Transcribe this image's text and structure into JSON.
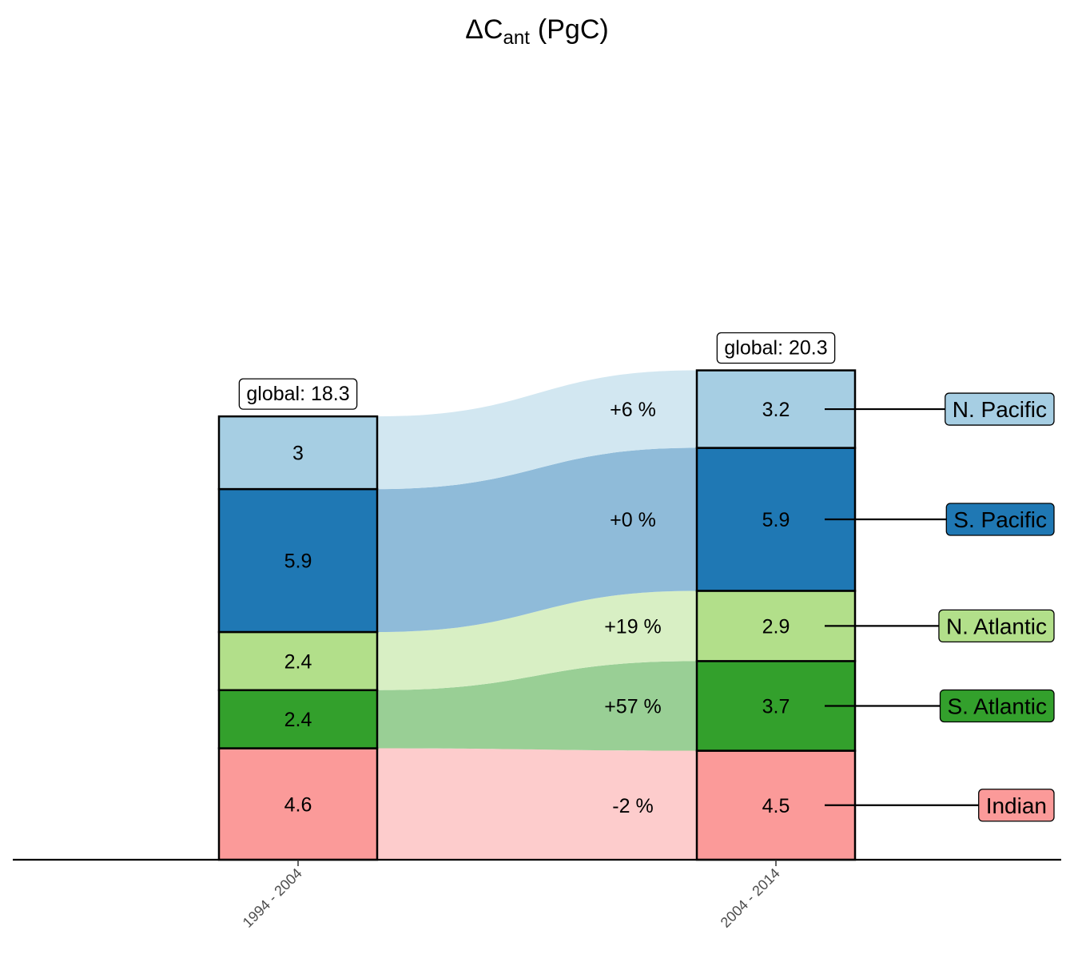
{
  "title": {
    "main": "ΔC",
    "subscript": "ant",
    "unit": "(PgC)"
  },
  "chart_data": {
    "type": "alluvial-stacked-bar",
    "periods": [
      "1994 - 2004",
      "2004 - 2014"
    ],
    "stack_order_bottom_to_top": [
      "Indian",
      "S. Atlantic",
      "N. Atlantic",
      "S. Pacific",
      "N. Pacific"
    ],
    "series": [
      {
        "name": "N. Pacific",
        "values": [
          3,
          3.2
        ],
        "labels": [
          "3",
          "3.2"
        ],
        "change": "+6 %",
        "color": "#a6cee3",
        "flow_color": "#d2e7f1"
      },
      {
        "name": "S. Pacific",
        "values": [
          5.9,
          5.9
        ],
        "labels": [
          "5.9",
          "5.9"
        ],
        "change": "+0 %",
        "color": "#1f78b4",
        "flow_color": "#8fbbd9"
      },
      {
        "name": "N. Atlantic",
        "values": [
          2.4,
          2.9
        ],
        "labels": [
          "2.4",
          "2.9"
        ],
        "change": "+19 %",
        "color": "#b2df8a",
        "flow_color": "#d8efc4"
      },
      {
        "name": "S. Atlantic",
        "values": [
          2.4,
          3.7
        ],
        "labels": [
          "2.4",
          "3.7"
        ],
        "change": "+57 %",
        "color": "#33a02c",
        "flow_color": "#99cf95"
      },
      {
        "name": "Indian",
        "values": [
          4.6,
          4.5
        ],
        "labels": [
          "4.6",
          "4.5"
        ],
        "change": "-2 %",
        "color": "#fb9a99",
        "flow_color": "#fdcccc"
      }
    ],
    "totals": [
      "global: 18.3",
      "global: 20.3"
    ],
    "ylim": [
      0,
      20.3
    ],
    "grid": false,
    "legend_placement": "right"
  }
}
